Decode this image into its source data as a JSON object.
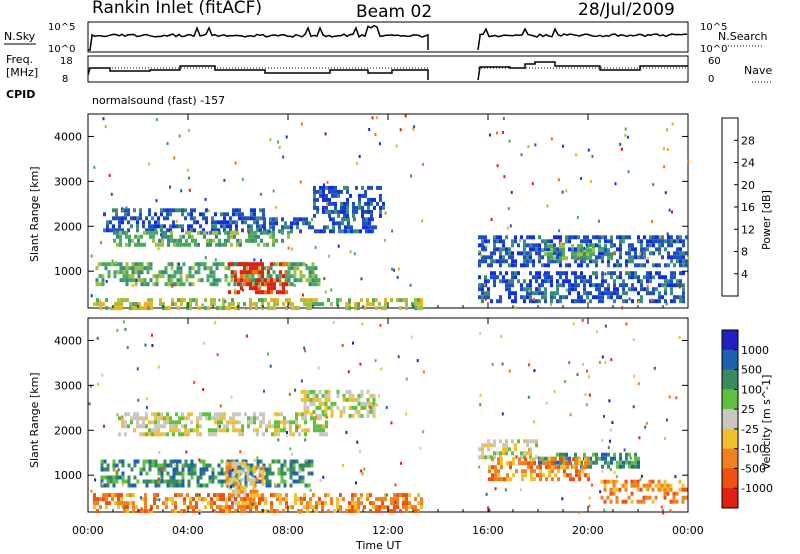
{
  "header": {
    "title": "Rankin Inlet (fitACF)",
    "beam": "Beam 02",
    "date": "28/Jul/2009"
  },
  "top_panels": {
    "nsky_label": "N.Sky",
    "nsky_ticks": [
      "10^5",
      "10^0"
    ],
    "nsearch_label": "N.Search",
    "nsearch_ticks": [
      "10^5",
      "10^0"
    ],
    "freq_label": "Freq.",
    "freq_unit": "[MHz]",
    "freq_ticks": [
      "18",
      "8"
    ],
    "nave_label": "Nave",
    "nave_ticks": [
      "60",
      "0"
    ],
    "cpid_label": "CPID",
    "cpid_value": "normalsound (fast) -157"
  },
  "colors": {
    "power": [
      "#1030e0",
      "#2050c0",
      "#3a8a80",
      "#4aaa60",
      "#a0c040",
      "#f0b020",
      "#f07010",
      "#e02010"
    ],
    "velocity": [
      "#2020c0",
      "#2060b0",
      "#3a8a60",
      "#60c040",
      "#c8c8c0",
      "#f0c030",
      "#f08020",
      "#f05010",
      "#e02010"
    ],
    "noise_green": "#60c040"
  },
  "chart_data": [
    {
      "type": "heatmap",
      "name": "power-panel",
      "ylabel": "Slant Range [km]",
      "xlabel": "",
      "x_ticks": [
        "00:00",
        "04:00",
        "08:00",
        "12:00",
        "16:00",
        "20:00",
        "00:00"
      ],
      "y_ticks": [
        "1000",
        "2000",
        "3000",
        "4000"
      ],
      "xlim_hours": [
        0,
        24
      ],
      "ylim_km": [
        180,
        4500
      ],
      "colorbar": {
        "label": "Power [dB]",
        "ticks": [
          "4",
          "8",
          "12",
          "16",
          "20",
          "24",
          "28"
        ],
        "range": [
          0,
          32
        ]
      },
      "regions": [
        {
          "t0": 0.6,
          "t1": 7.0,
          "r0": 1950,
          "r1": 2400,
          "level": 1
        },
        {
          "t0": 7.0,
          "t1": 11.5,
          "r0": 1900,
          "r1": 2200,
          "level": 1
        },
        {
          "t0": 9.0,
          "t1": 11.8,
          "r0": 2200,
          "r1": 2900,
          "level": 1
        },
        {
          "t0": 1.0,
          "t1": 8.0,
          "r0": 1550,
          "r1": 1900,
          "level": 3
        },
        {
          "t0": 0.3,
          "t1": 9.2,
          "r0": 700,
          "r1": 1200,
          "level": 3
        },
        {
          "t0": 5.6,
          "t1": 7.9,
          "r0": 500,
          "r1": 1200,
          "level": 7
        },
        {
          "t0": 0.2,
          "t1": 13.3,
          "r0": 180,
          "r1": 400,
          "level": 4
        },
        {
          "t0": 15.6,
          "t1": 23.9,
          "r0": 1100,
          "r1": 1800,
          "level": 1
        },
        {
          "t0": 18.0,
          "t1": 21.0,
          "r0": 1300,
          "r1": 1600,
          "level": 3
        },
        {
          "t0": 15.6,
          "t1": 23.8,
          "r0": 300,
          "r1": 1000,
          "level": 1
        }
      ]
    },
    {
      "type": "heatmap",
      "name": "velocity-panel",
      "ylabel": "Slant Range [km]",
      "xlabel": "Time UT",
      "x_ticks": [
        "00:00",
        "04:00",
        "08:00",
        "12:00",
        "16:00",
        "20:00",
        "00:00"
      ],
      "y_ticks": [
        "1000",
        "2000",
        "3000",
        "4000"
      ],
      "xlim_hours": [
        0,
        24
      ],
      "ylim_km": [
        180,
        4500
      ],
      "colorbar": {
        "label": "Velocity [m s^-1]",
        "ticks": [
          "1000",
          "500",
          "100",
          "25",
          "-25",
          "-100",
          "-500",
          "-1000"
        ]
      },
      "regions": [
        {
          "t0": 1.2,
          "t1": 9.5,
          "r0": 1900,
          "r1": 2400,
          "level": 4
        },
        {
          "t0": 8.5,
          "t1": 11.5,
          "r0": 2300,
          "r1": 2900,
          "level": 4
        },
        {
          "t0": 0.5,
          "t1": 9.0,
          "r0": 750,
          "r1": 1350,
          "level": 2
        },
        {
          "t0": 5.5,
          "t1": 7.0,
          "r0": 400,
          "r1": 1300,
          "level": 5
        },
        {
          "t0": 0.2,
          "t1": 13.3,
          "r0": 180,
          "r1": 600,
          "level": 6
        },
        {
          "t0": 15.6,
          "t1": 18.0,
          "r0": 1400,
          "r1": 1800,
          "level": 4
        },
        {
          "t0": 18.0,
          "t1": 22.0,
          "r0": 1200,
          "r1": 1500,
          "level": 2
        },
        {
          "t0": 16.0,
          "t1": 20.0,
          "r0": 900,
          "r1": 1400,
          "level": 6
        },
        {
          "t0": 20.5,
          "t1": 23.9,
          "r0": 400,
          "r1": 900,
          "level": 6
        }
      ]
    }
  ]
}
